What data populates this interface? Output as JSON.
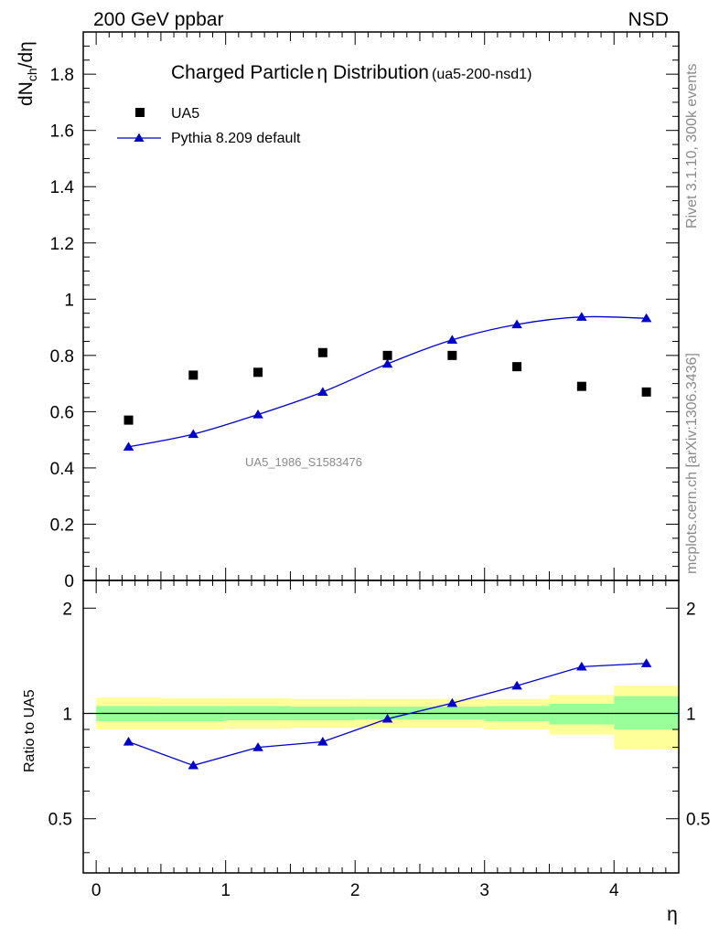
{
  "header": {
    "energy_label": "200 GeV ppbar",
    "process_label": "NSD"
  },
  "side_labels": {
    "rivet": "Rivet 3.1.10,  300k events",
    "mcplots": "mcplots.cern.ch [arXiv:1306.3436]"
  },
  "chart_data": [
    {
      "type": "scatter",
      "title": "Charged Particle",
      "title_symbol": "η",
      "title_rest": " Distribution",
      "title_tag": "(ua5-200-nsd1)",
      "ylabel": "dN_ch/dη",
      "ylabel_main": "dN",
      "ylabel_sub": "ch",
      "ylabel_tail": "/dη",
      "xlim": [
        -0.1,
        4.5
      ],
      "ylim": [
        0,
        1.95
      ],
      "yticks": [
        0,
        0.2,
        0.4,
        0.6,
        0.8,
        1,
        1.2,
        1.4,
        1.6,
        1.8
      ],
      "ytick_labels": [
        "0",
        "0.2",
        "0.4",
        "0.6",
        "0.8",
        "1",
        "1.2",
        "1.4",
        "1.6",
        "1.8"
      ],
      "watermark": "UA5_1986_S1583476",
      "legend_position": "top-left",
      "x": [
        0.25,
        0.75,
        1.25,
        1.75,
        2.25,
        2.75,
        3.25,
        3.75,
        4.25
      ],
      "series": [
        {
          "name": "UA5",
          "marker": "square",
          "color": "#000000",
          "values": [
            0.57,
            0.73,
            0.74,
            0.81,
            0.8,
            0.8,
            0.76,
            0.69,
            0.67
          ]
        },
        {
          "name": "Pythia 8.209 default",
          "marker": "triangle",
          "color": "#0000cc",
          "values": [
            0.475,
            0.52,
            0.59,
            0.67,
            0.77,
            0.855,
            0.91,
            0.937,
            0.932
          ]
        }
      ]
    },
    {
      "type": "line",
      "ylabel": "Ratio to UA5",
      "xlabel": "η",
      "xlim": [
        -0.1,
        4.5
      ],
      "ylim": [
        0.35,
        2.4
      ],
      "xticks": [
        0,
        1,
        2,
        3,
        4
      ],
      "xtick_labels": [
        "0",
        "1",
        "2",
        "3",
        "4"
      ],
      "yticks": [
        0.5,
        1,
        2
      ],
      "ytick_labels": [
        "0.5",
        "1",
        "2"
      ],
      "x": [
        0.25,
        0.75,
        1.25,
        1.75,
        2.25,
        2.75,
        3.25,
        3.75,
        4.25
      ],
      "reference_line": 1,
      "bands": {
        "bins": [
          0,
          0.5,
          1,
          1.5,
          2,
          2.5,
          3,
          3.5,
          4,
          4.5
        ],
        "inner_color": "#99ff99",
        "outer_color": "#ffff99",
        "inner": [
          [
            0.95,
            1.05
          ],
          [
            0.95,
            1.05
          ],
          [
            0.955,
            1.05
          ],
          [
            0.955,
            1.045
          ],
          [
            0.96,
            1.045
          ],
          [
            0.96,
            1.045
          ],
          [
            0.95,
            1.05
          ],
          [
            0.93,
            1.065
          ],
          [
            0.9,
            1.12
          ]
        ],
        "outer": [
          [
            0.9,
            1.11
          ],
          [
            0.9,
            1.105
          ],
          [
            0.905,
            1.105
          ],
          [
            0.91,
            1.1
          ],
          [
            0.91,
            1.1
          ],
          [
            0.91,
            1.1
          ],
          [
            0.9,
            1.1
          ],
          [
            0.87,
            1.13
          ],
          [
            0.79,
            1.2
          ]
        ]
      },
      "series": [
        {
          "name": "Pythia 8.209 default",
          "marker": "triangle",
          "color": "#0000cc",
          "values": [
            0.83,
            0.71,
            0.8,
            0.83,
            0.965,
            1.07,
            1.2,
            1.36,
            1.39
          ]
        }
      ]
    }
  ]
}
